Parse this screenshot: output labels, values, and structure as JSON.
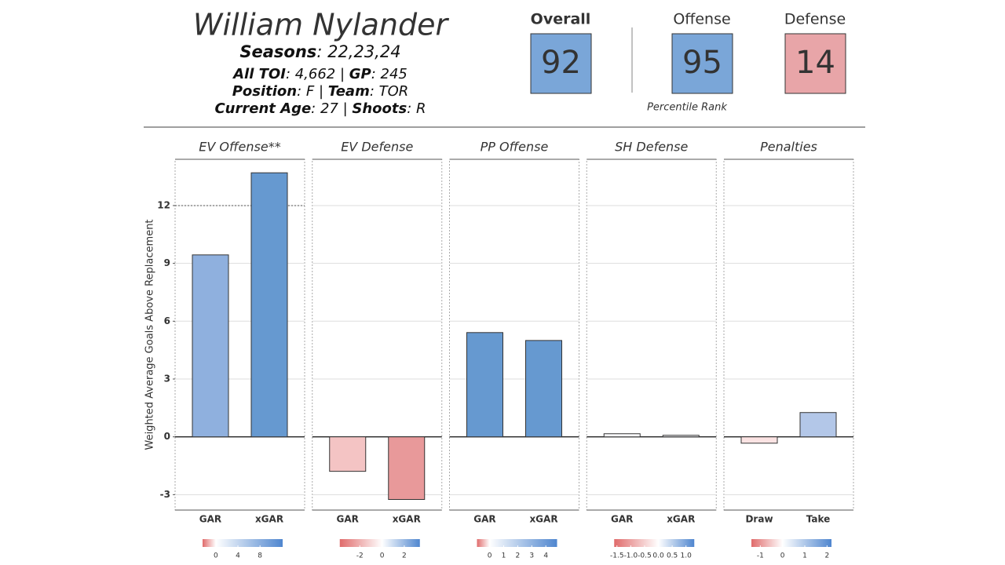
{
  "header": {
    "name": "William Nylander",
    "lines": [
      [
        {
          "label": "Seasons",
          "text": ": 22,23,24"
        }
      ],
      [
        {
          "label": "All TOI",
          "text": ": 4,662 | "
        },
        {
          "label": "GP",
          "text": ": 245"
        }
      ],
      [
        {
          "label": "Position",
          "text": ": F | "
        },
        {
          "label": "Team",
          "text": ": TOR"
        }
      ],
      [
        {
          "label": "Current Age",
          "text": ": 27 | "
        },
        {
          "label": "Shoots",
          "text": ": R"
        }
      ]
    ]
  },
  "percentiles": {
    "caption": "Percentile Rank",
    "items": [
      {
        "label": "Overall",
        "value": 92,
        "color": "#7aa6d8"
      },
      {
        "label": "Offense",
        "value": 95,
        "color": "#7aa6d8"
      },
      {
        "label": "Defense",
        "value": 14,
        "color": "#e8a5a8"
      }
    ]
  },
  "chart_data": [
    {
      "type": "bar",
      "title": "EV Offense**",
      "ylabel": "Weighted Average Goals Above Replacement",
      "categories": [
        "GAR",
        "xGAR"
      ],
      "values": [
        9.44,
        13.7
      ],
      "colors": [
        "#8fb0de",
        "#6699d0"
      ],
      "ylim": [
        -3.8,
        14.4
      ],
      "yticks": [
        -3,
        0,
        3,
        6,
        9,
        12
      ],
      "reference_line": 12,
      "color_scale": {
        "lim": [
          -2.4,
          12.1
        ],
        "ticks": [
          0,
          4,
          8
        ]
      }
    },
    {
      "type": "bar",
      "title": "EV Defense",
      "categories": [
        "GAR",
        "xGAR"
      ],
      "values": [
        -1.79,
        -3.25
      ],
      "colors": [
        "#f4c4c4",
        "#e8999a"
      ],
      "ylim": [
        -3.8,
        14.4
      ],
      "yticks": [
        -3,
        0,
        3,
        6,
        9,
        12
      ],
      "color_scale": {
        "lim": [
          -3.8,
          3.4
        ],
        "ticks": [
          -2,
          0,
          2
        ]
      }
    },
    {
      "type": "bar",
      "title": "PP Offense",
      "categories": [
        "GAR",
        "xGAR"
      ],
      "values": [
        5.41,
        5.0
      ],
      "colors": [
        "#6699d0",
        "#6699d0"
      ],
      "ylim": [
        -3.8,
        14.4
      ],
      "yticks": [
        -3,
        0,
        3,
        6,
        9,
        12
      ],
      "color_scale": {
        "lim": [
          -0.9,
          4.8
        ],
        "ticks": [
          0,
          1,
          2,
          3,
          4
        ]
      }
    },
    {
      "type": "bar",
      "title": "SH Defense",
      "categories": [
        "GAR",
        "xGAR"
      ],
      "values": [
        0.16,
        0.08
      ],
      "colors": [
        "#fdfdff",
        "#f8f9fc"
      ],
      "ylim": [
        -3.8,
        14.4
      ],
      "yticks": [
        -3,
        0,
        3,
        6,
        9,
        12
      ],
      "color_scale": {
        "lim": [
          -1.6,
          1.3
        ],
        "ticks": [
          -1.5,
          {
            "value": -1,
            "label": "-1.0"
          },
          -0.5,
          {
            "value": 0,
            "label": "0.0"
          },
          0.5,
          {
            "value": 1,
            "label": "1.0"
          }
        ]
      }
    },
    {
      "type": "bar",
      "title": "Penalties",
      "categories": [
        "Draw",
        "Take"
      ],
      "values": [
        -0.33,
        1.26
      ],
      "colors": [
        "#fbe3e3",
        "#b3c7e8"
      ],
      "ylim": [
        -3.8,
        14.4
      ],
      "yticks": [
        -3,
        0,
        3,
        6,
        9,
        12
      ],
      "color_scale": {
        "lim": [
          -1.4,
          2.2
        ],
        "ticks": [
          -1,
          0,
          1,
          2
        ]
      }
    }
  ]
}
